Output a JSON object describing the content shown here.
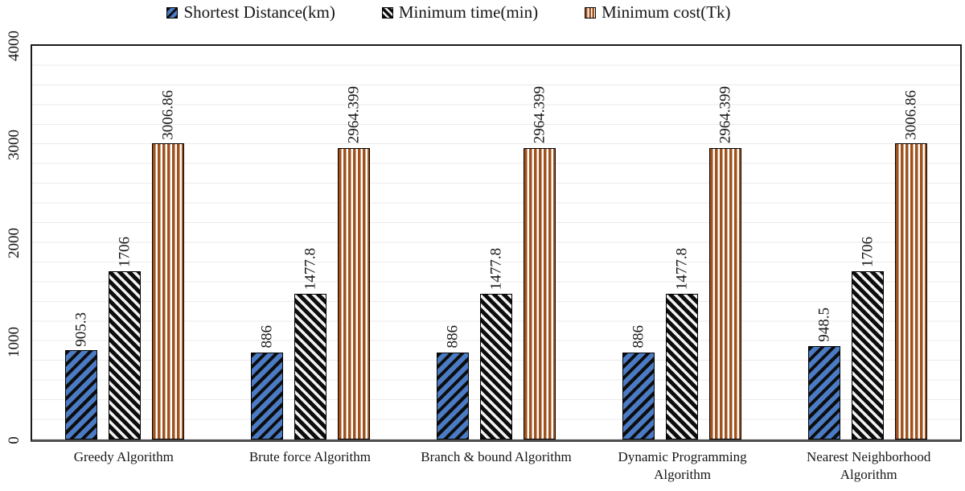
{
  "chart_data": {
    "type": "bar",
    "title": "",
    "categories": [
      "Greedy Algorithm",
      "Brute force Algorithm",
      "Branch & bound Algorithm",
      "Dynamic Programming Algorithm",
      "Nearest Neighborhood Algorithm"
    ],
    "series": [
      {
        "name": "Shortest Distance(km)",
        "values": [
          905.3,
          886,
          886,
          886,
          948.5
        ],
        "labels": [
          "905.3",
          "886",
          "886",
          "886",
          "948.5"
        ],
        "color": "#4a7bc4",
        "stripe_color": "#0d0d0d",
        "pattern": "diagonal-down"
      },
      {
        "name": "Minimum time(min)",
        "values": [
          1706,
          1477.8,
          1477.8,
          1477.8,
          1706
        ],
        "labels": [
          "1706",
          "1477.8",
          "1477.8",
          "1477.8",
          "1706"
        ],
        "color": "#0d0d0d",
        "stripe_color": "#f2f2f2",
        "pattern": "diagonal-up"
      },
      {
        "name": "Minimum cost(Tk)",
        "values": [
          3006.86,
          2964.399,
          2964.399,
          2964.399,
          3006.86
        ],
        "labels": [
          "3006.86",
          "2964.399",
          "2964.399",
          "2964.399",
          "3006.86"
        ],
        "color": "#a0521d",
        "stripe_color": "#ffffff",
        "pattern": "vertical"
      }
    ],
    "ylim": [
      0,
      4000
    ],
    "yticks": [
      0,
      1000,
      2000,
      3000,
      4000
    ],
    "ytick_labels": [
      "0",
      "1000",
      "2000",
      "3000",
      "4000"
    ],
    "grid": "horizontal minor gridlines every 200, light gray",
    "legend_position": "top-center",
    "bar_value_labels_rotated": true,
    "colors": {
      "plot_border": "#1a1a1a",
      "axis_line": "#4e4e4e",
      "gridline": "#ebebeb",
      "text": "#161616",
      "background": "#ffffff"
    }
  }
}
